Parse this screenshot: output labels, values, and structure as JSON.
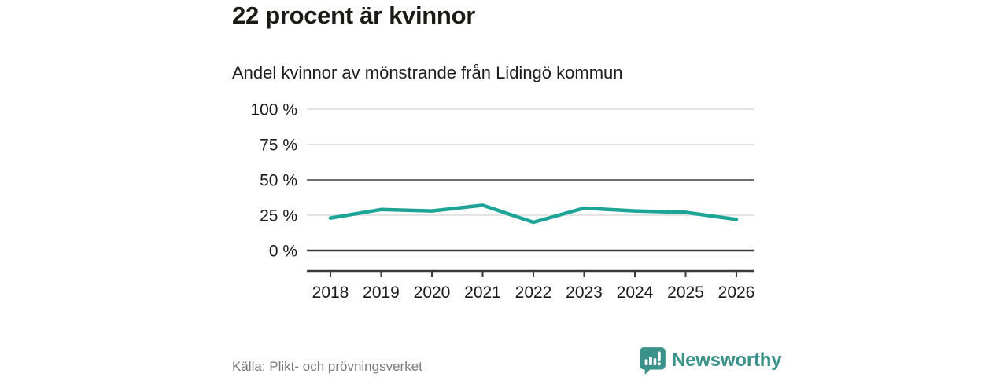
{
  "header": {
    "title": "22 procent är kvinnor",
    "subtitle": "Andel kvinnor av mönstrande från Lidingö kommun"
  },
  "chart_data": {
    "type": "line",
    "title": "22 procent är kvinnor",
    "subtitle": "Andel kvinnor av mönstrande från Lidingö kommun",
    "categories": [
      "2018",
      "2019",
      "2020",
      "2021",
      "2022",
      "2023",
      "2024",
      "2025",
      "2026"
    ],
    "values": [
      23,
      29,
      28,
      32,
      20,
      30,
      28,
      27,
      22
    ],
    "unit": "%",
    "xlabel": "",
    "ylabel": "",
    "ylim": [
      0,
      100
    ],
    "y_ticks": [
      {
        "label": "100 %",
        "value": 100,
        "line": "light"
      },
      {
        "label": "75 %",
        "value": 75,
        "line": "light"
      },
      {
        "label": "50 %",
        "value": 50,
        "line": "medium"
      },
      {
        "label": "25 %",
        "value": 25,
        "line": "light"
      },
      {
        "label": "0 %",
        "value": 0,
        "line": "dark"
      }
    ],
    "grid": true,
    "legend": "none",
    "line_color": "#1ca496",
    "axis_color": "#3a3a3a",
    "grid_light_color": "#dcdcdc",
    "grid_medium_color": "#6f6f6f",
    "tick_label_color": "#1a1a1a"
  },
  "footer": {
    "source": "Källa: Plikt- och prövningsverket",
    "brand": {
      "name": "Newsworthy",
      "color": "#3a928b",
      "icon": "newsworthy-bar-chart-bubble-icon"
    }
  }
}
